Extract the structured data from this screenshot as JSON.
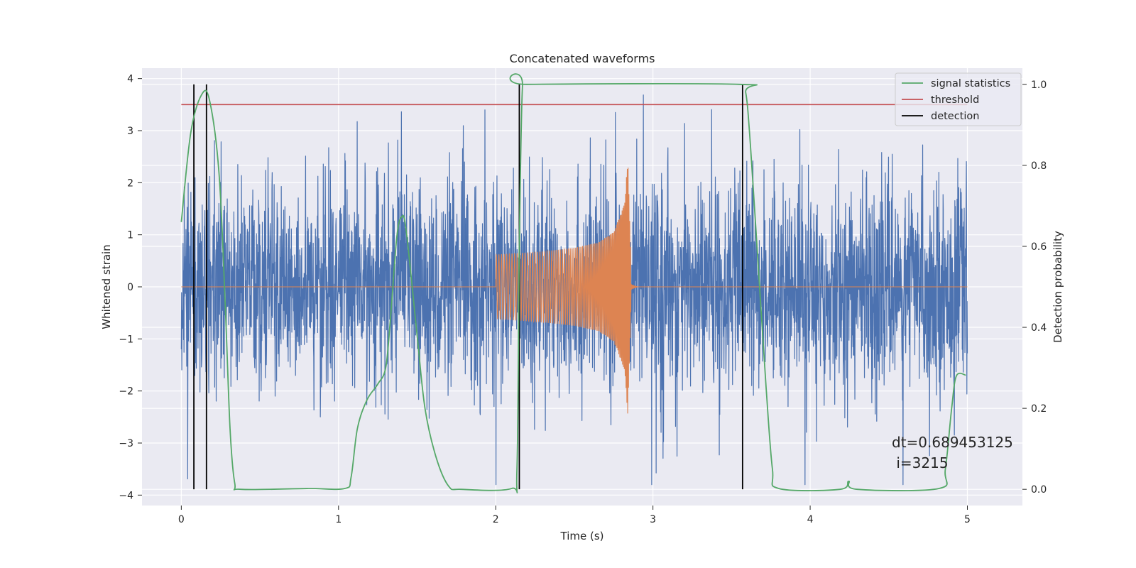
{
  "chart_data": {
    "type": "line",
    "title": "Concatenated waveforms",
    "xlabel": "Time (s)",
    "ylabel_left": "Whitened strain",
    "ylabel_right": "Detection probability",
    "xlim": [
      -0.25,
      5.35
    ],
    "ylim_left": [
      -4.2,
      4.2
    ],
    "ylim_right": [
      -0.04,
      1.04
    ],
    "x_ticks": [
      0,
      1,
      2,
      3,
      4,
      5
    ],
    "y_ticks_left": [
      -4,
      -3,
      -2,
      -1,
      0,
      1,
      2,
      3,
      4
    ],
    "y_ticks_right": [
      0.0,
      0.2,
      0.4,
      0.6,
      0.8,
      1.0
    ],
    "grid": true,
    "legend_position": "top-right",
    "colors": {
      "background": "#eaeaf2",
      "grid": "#ffffff",
      "noise": "#4c72b0",
      "signal": "#dd8452",
      "statistic": "#55a868",
      "threshold": "#c44e52",
      "detection": "#000000"
    },
    "series": [
      {
        "name": "",
        "axis": "left",
        "kind": "whitened noise (random, amplitude ~ +/-2.5 with peaks to ~3.8)",
        "x_range": [
          0,
          5
        ]
      },
      {
        "name": "",
        "axis": "left",
        "kind": "injected chirp signal",
        "x_range": [
          2.0,
          2.85
        ],
        "amplitude_points": [
          [
            2.0,
            0.62
          ],
          [
            2.3,
            0.68
          ],
          [
            2.5,
            0.75
          ],
          [
            2.65,
            0.85
          ],
          [
            2.75,
            1.05
          ],
          [
            2.82,
            1.6
          ],
          [
            2.84,
            2.5
          ],
          [
            2.86,
            0.5
          ]
        ]
      },
      {
        "name": "signal statistics",
        "axis": "right",
        "points": [
          [
            0,
            0.66
          ],
          [
            0.06,
            0.88
          ],
          [
            0.13,
            0.975
          ],
          [
            0.18,
            0.96
          ],
          [
            0.24,
            0.78
          ],
          [
            0.28,
            0.45
          ],
          [
            0.31,
            0.15
          ],
          [
            0.34,
            0.015
          ],
          [
            0.38,
            0.0
          ],
          [
            0.8,
            0.002
          ],
          [
            1.04,
            0.002
          ],
          [
            1.08,
            0.03
          ],
          [
            1.12,
            0.15
          ],
          [
            1.18,
            0.22
          ],
          [
            1.25,
            0.26
          ],
          [
            1.3,
            0.3
          ],
          [
            1.33,
            0.42
          ],
          [
            1.37,
            0.62
          ],
          [
            1.4,
            0.672
          ],
          [
            1.43,
            0.64
          ],
          [
            1.5,
            0.38
          ],
          [
            1.55,
            0.2
          ],
          [
            1.62,
            0.08
          ],
          [
            1.7,
            0.008
          ],
          [
            1.78,
            0.0
          ],
          [
            2.1,
            0.002
          ],
          [
            2.135,
            0.05
          ],
          [
            2.15,
            0.6
          ],
          [
            2.17,
            0.995
          ],
          [
            2.2,
            1.0
          ],
          [
            3.55,
            1.0
          ],
          [
            3.59,
            0.98
          ],
          [
            3.62,
            0.85
          ],
          [
            3.67,
            0.55
          ],
          [
            3.72,
            0.25
          ],
          [
            3.76,
            0.05
          ],
          [
            3.8,
            0.002
          ],
          [
            4.19,
            0.0
          ],
          [
            4.245,
            0.02
          ],
          [
            4.3,
            0.0
          ],
          [
            4.82,
            0.002
          ],
          [
            4.86,
            0.05
          ],
          [
            4.9,
            0.2
          ],
          [
            4.93,
            0.28
          ],
          [
            4.99,
            0.282
          ]
        ]
      },
      {
        "name": "threshold",
        "axis": "right",
        "points": [
          [
            0,
            0.95
          ],
          [
            5,
            0.95
          ]
        ]
      },
      {
        "name": "detection",
        "axis": "right",
        "kind": "vertical lines",
        "x": [
          0.08,
          0.16,
          2.15,
          3.57
        ],
        "y_range": [
          0,
          1
        ]
      }
    ],
    "annotation": {
      "line1": "dt=0.689453125",
      "line2": " i=3215",
      "x": 4.5,
      "y_right": 0.1
    }
  }
}
